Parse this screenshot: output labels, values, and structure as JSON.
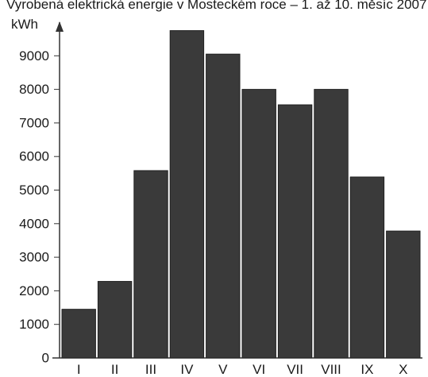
{
  "chart_data": {
    "type": "bar",
    "title": "Vyrobená elektrická energie v Mosteckém roce – 1. až 10. měsíc 2007",
    "ylabel": "kWh",
    "xlabel": "",
    "categories": [
      "I",
      "II",
      "III",
      "IV",
      "V",
      "VI",
      "VII",
      "VIII",
      "IX",
      "X"
    ],
    "values": [
      1450,
      2280,
      5580,
      9750,
      9050,
      8000,
      7540,
      8000,
      5390,
      3780
    ],
    "ylim": [
      0,
      10000
    ],
    "yticks": [
      0,
      1000,
      2000,
      3000,
      4000,
      5000,
      6000,
      7000,
      8000,
      9000
    ],
    "ytick_labels": [
      "0",
      "1000",
      "2000",
      "3000",
      "4000",
      "5000",
      "6000",
      "7000",
      "8000",
      "9000"
    ],
    "bar_color": "#3a3a3a",
    "grid": false,
    "legend": "none"
  }
}
